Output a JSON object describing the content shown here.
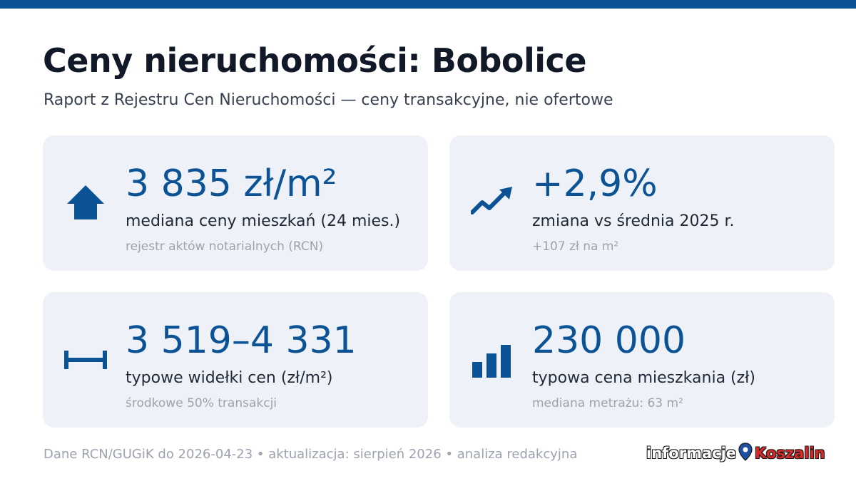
{
  "header": {
    "title": "Ceny nieruchomości: Bobolice",
    "subtitle": "Raport z Rejestru Cen Nieruchomości — ceny transakcyjne, nie ofertowe"
  },
  "colors": {
    "accent": "#0b5394",
    "card_bg": "#eef2f8",
    "brand_red": "#d42a2a"
  },
  "cards": [
    {
      "icon": "house-icon",
      "value": "3 835 zł/m²",
      "label": "mediana ceny mieszkań (24 mies.)",
      "note": "rejestr aktów notarialnych (RCN)"
    },
    {
      "icon": "trend-up-icon",
      "value": "+2,9%",
      "label": "zmiana vs średnia 2025 r.",
      "note": "+107 zł na m²"
    },
    {
      "icon": "range-icon",
      "value": "3 519–4 331",
      "label": "typowe widełki cen (zł/m²)",
      "note": "środkowe 50% transakcji"
    },
    {
      "icon": "bar-chart-icon",
      "value": "230 000",
      "label": "typowa cena mieszkania (zł)",
      "note": "mediana metrażu: 63 m²"
    }
  ],
  "footer": {
    "text": "Dane RCN/GUGiK do 2026-04-23 • aktualizacja: sierpień 2026 • analiza redakcyjna"
  },
  "logo": {
    "word1": "informacje",
    "word2": "Koszalin"
  }
}
